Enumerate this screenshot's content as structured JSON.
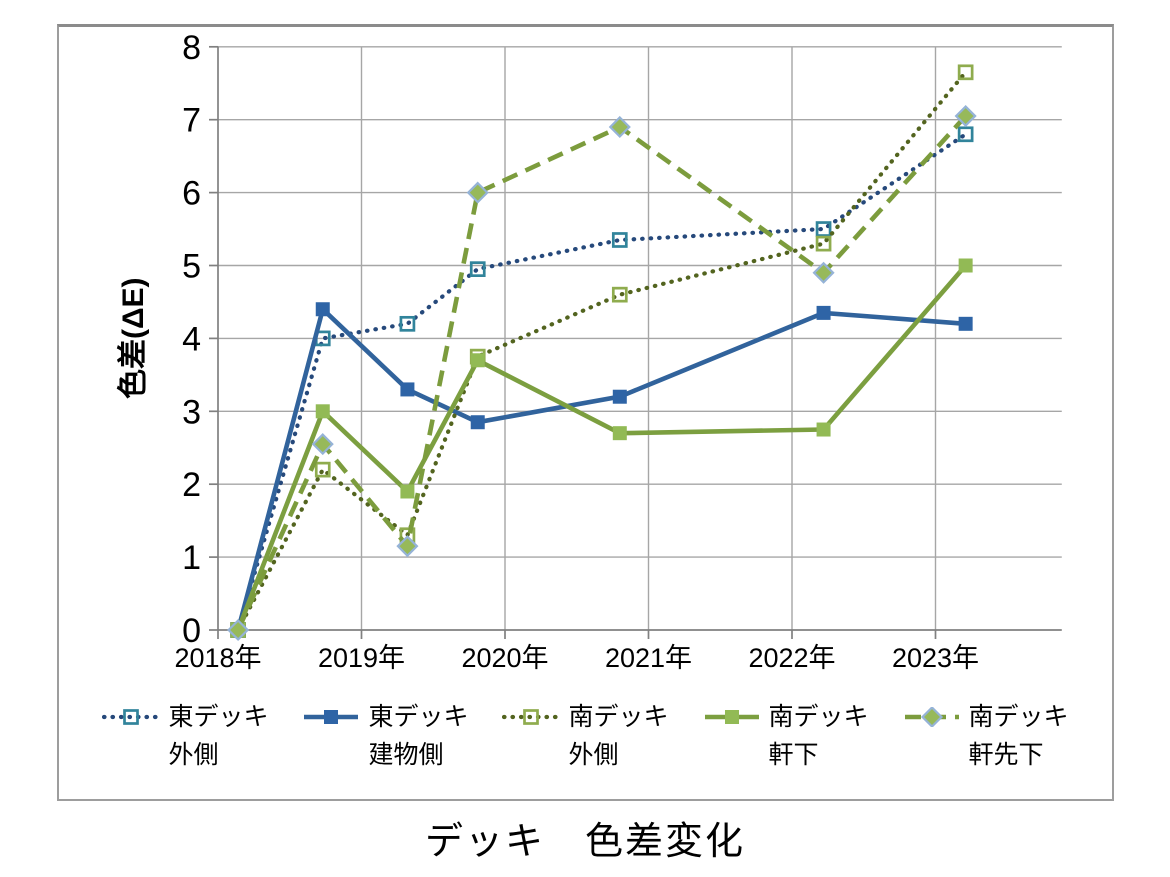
{
  "caption": "デッキ　色差変化",
  "chart_data": {
    "type": "line",
    "title": "デッキ　色差変化",
    "xlabel": "",
    "ylabel": "色差(ΔE)",
    "grid": true,
    "legend_position": "bottom",
    "y_axis": {
      "min": 0,
      "max": 8,
      "tick_interval": 1,
      "tick_labels": [
        "0",
        "1",
        "2",
        "3",
        "4",
        "5",
        "6",
        "7",
        "8"
      ]
    },
    "x_axis": {
      "tick_years": [
        2018,
        2019,
        2020,
        2021,
        2022,
        2023
      ],
      "tick_labels": [
        "2018年",
        "2019年",
        "2020年",
        "2021年",
        "2022年",
        "2023年"
      ],
      "min_year": 2018,
      "max_year": 2023.88
    },
    "x": [
      2018.14,
      2018.73,
      2019.32,
      2019.81,
      2020.8,
      2022.22,
      2023.21
    ],
    "series": [
      {
        "id": "east-deck-outer",
        "name": "東デッキ 外側",
        "name_lines": [
          "東デッキ",
          "外側"
        ],
        "values": [
          0,
          4.0,
          4.2,
          4.95,
          5.35,
          5.5,
          6.8
        ],
        "line_style": "dotted",
        "marker": "open-square",
        "line_color": "#26497B",
        "marker_color": "#31849B"
      },
      {
        "id": "east-deck-building",
        "name": "東デッキ 建物側",
        "name_lines": [
          "東デッキ",
          "建物側"
        ],
        "values": [
          0,
          4.4,
          3.3,
          2.85,
          3.2,
          4.35,
          4.2
        ],
        "line_style": "solid",
        "marker": "square",
        "line_color": "#31639C",
        "marker_color": "#2E64A6"
      },
      {
        "id": "south-deck-outer",
        "name": "南デッキ 外側",
        "name_lines": [
          "南デッキ",
          "外側"
        ],
        "values": [
          0,
          2.2,
          1.3,
          3.75,
          4.6,
          5.3,
          7.65
        ],
        "line_style": "dotted",
        "marker": "open-square",
        "line_color": "#53641F",
        "marker_color": "#8FAC4E"
      },
      {
        "id": "south-deck-eaves",
        "name": "南デッキ 軒下",
        "name_lines": [
          "南デッキ",
          "軒下"
        ],
        "values": [
          0,
          3.0,
          1.9,
          3.7,
          2.7,
          2.75,
          5.0
        ],
        "line_style": "solid",
        "marker": "square",
        "line_color": "#7C9F40",
        "marker_color": "#92BA55"
      },
      {
        "id": "south-deck-eaves-edge",
        "name": "南デッキ 軒先下",
        "name_lines": [
          "南デッキ",
          "軒先下"
        ],
        "values": [
          0,
          2.55,
          1.15,
          6.0,
          6.9,
          4.9,
          7.05
        ],
        "line_style": "dashed",
        "marker": "diamond",
        "line_color": "#7C9C3D",
        "marker_color": "#97B95A",
        "marker_edge": "#95B3D7"
      }
    ],
    "colors": {
      "grid": "#A6A6A6",
      "axis": "#808080",
      "text": "#000000",
      "frame_border": "#9D9D9D",
      "background": "#FFFFFF"
    }
  }
}
